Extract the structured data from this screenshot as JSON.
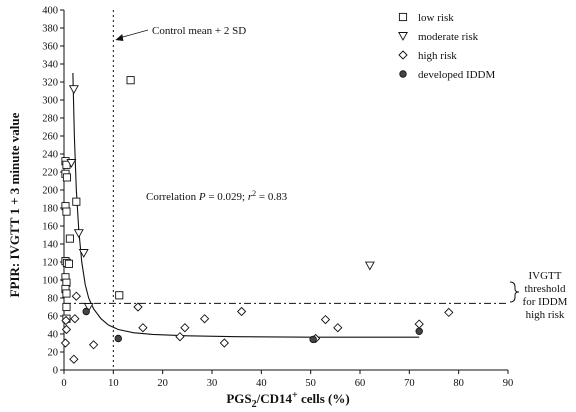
{
  "chart_data": {
    "type": "scatter",
    "xlabel_main": "PGS",
    "xlabel_sub": "2",
    "xlabel_rest": "/CD14",
    "xlabel_sup": "+",
    "xlabel_tail": " cells  (%)",
    "ylabel": "FPIR: IVGTT 1 + 3 minute value",
    "xlim": [
      0,
      90
    ],
    "ylim": [
      0,
      400
    ],
    "xticks": [
      0,
      10,
      20,
      30,
      40,
      50,
      60,
      70,
      80,
      90
    ],
    "yticks": [
      0,
      20,
      40,
      60,
      80,
      100,
      120,
      140,
      160,
      180,
      200,
      220,
      240,
      260,
      280,
      300,
      320,
      340,
      360,
      380,
      400
    ],
    "grid": false,
    "legend_placement": "top-right",
    "series": [
      {
        "name": "low risk",
        "marker": "square",
        "points": [
          [
            0.3,
            232
          ],
          [
            0.5,
            228
          ],
          [
            0.3,
            218
          ],
          [
            0.6,
            214
          ],
          [
            0.3,
            182
          ],
          [
            0.5,
            176
          ],
          [
            0.3,
            121
          ],
          [
            0.6,
            119
          ],
          [
            0.3,
            103
          ],
          [
            0.5,
            97
          ],
          [
            0.3,
            90
          ],
          [
            0.5,
            85
          ],
          [
            0.5,
            70
          ],
          [
            0.5,
            57
          ],
          [
            2.5,
            187
          ],
          [
            1.2,
            146
          ],
          [
            1.0,
            118
          ],
          [
            11.2,
            83
          ],
          [
            13.5,
            322
          ]
        ]
      },
      {
        "name": "moderate risk",
        "marker": "triangle-down",
        "points": [
          [
            1.5,
            230
          ],
          [
            2.0,
            312
          ],
          [
            3.0,
            152
          ],
          [
            4.0,
            130
          ],
          [
            5.0,
            70
          ],
          [
            62.0,
            116
          ]
        ]
      },
      {
        "name": "high risk",
        "marker": "diamond",
        "points": [
          [
            0.3,
            30
          ],
          [
            0.5,
            45
          ],
          [
            0.4,
            55
          ],
          [
            2.0,
            12
          ],
          [
            2.5,
            82
          ],
          [
            2.2,
            57
          ],
          [
            6.0,
            28
          ],
          [
            15.0,
            70
          ],
          [
            16.0,
            47
          ],
          [
            23.5,
            37
          ],
          [
            24.5,
            47
          ],
          [
            28.5,
            57
          ],
          [
            32.5,
            30
          ],
          [
            36.0,
            65
          ],
          [
            51.0,
            35
          ],
          [
            53.0,
            56
          ],
          [
            55.5,
            47
          ],
          [
            72.0,
            51
          ],
          [
            78.0,
            64
          ]
        ]
      },
      {
        "name": "developed IDDM",
        "marker": "filled-circle",
        "points": [
          [
            4.5,
            65
          ],
          [
            11.0,
            35
          ],
          [
            50.5,
            34
          ],
          [
            72.0,
            43
          ]
        ]
      }
    ],
    "fit_curve": [
      [
        1.8,
        330
      ],
      [
        2.1,
        260
      ],
      [
        2.5,
        200
      ],
      [
        3.0,
        155
      ],
      [
        3.6,
        120
      ],
      [
        4.3,
        95
      ],
      [
        5.0,
        80
      ],
      [
        6.0,
        68
      ],
      [
        7.5,
        57
      ],
      [
        9.0,
        50
      ],
      [
        11.0,
        45
      ],
      [
        14.0,
        41.5
      ],
      [
        18.0,
        39.5
      ],
      [
        25.0,
        38
      ],
      [
        35.0,
        37
      ],
      [
        50.0,
        36.5
      ],
      [
        72.0,
        36.5
      ]
    ],
    "control_line_x": 10,
    "threshold_line_y": 74,
    "annotations": {
      "control": "Control mean + 2 SD",
      "correlation_prefix": "Correlation ",
      "correlation_p": "P",
      "correlation_mid": " = 0.029; ",
      "correlation_r": "r",
      "correlation_sup": "2",
      "correlation_end": " = 0.83",
      "threshold_lines": [
        "IVGTT",
        "threshold",
        "for IDDM",
        "high risk"
      ]
    }
  }
}
